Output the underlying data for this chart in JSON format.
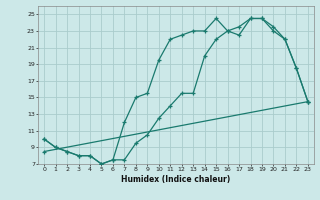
{
  "xlabel": "Humidex (Indice chaleur)",
  "bg_color": "#cce8e8",
  "grid_color": "#aacccc",
  "line_color": "#1a7a6e",
  "xlim": [
    -0.5,
    23.5
  ],
  "ylim": [
    7,
    26
  ],
  "xticks": [
    0,
    1,
    2,
    3,
    4,
    5,
    6,
    7,
    8,
    9,
    10,
    11,
    12,
    13,
    14,
    15,
    16,
    17,
    18,
    19,
    20,
    21,
    22,
    23
  ],
  "yticks": [
    7,
    9,
    11,
    13,
    15,
    17,
    19,
    21,
    23,
    25
  ],
  "line1_x": [
    0,
    1,
    2,
    3,
    4,
    5,
    6,
    7,
    8,
    9,
    10,
    11,
    12,
    13,
    14,
    15,
    16,
    17,
    18,
    19,
    20,
    21,
    22,
    23
  ],
  "line1_y": [
    10,
    9,
    8.5,
    8,
    8,
    7,
    7.5,
    12,
    15,
    15.5,
    19.5,
    22,
    22.5,
    23,
    23,
    24.5,
    23,
    23.5,
    24.5,
    24.5,
    23,
    22,
    18.5,
    14.5
  ],
  "line2_x": [
    0,
    1,
    2,
    3,
    4,
    5,
    6,
    7,
    8,
    9,
    10,
    11,
    12,
    13,
    14,
    15,
    16,
    17,
    18,
    19,
    20,
    21,
    22,
    23
  ],
  "line2_y": [
    10,
    9,
    8.5,
    8,
    8,
    7,
    7.5,
    7.5,
    9.5,
    10.5,
    12.5,
    14,
    15.5,
    15.5,
    20,
    22,
    23,
    22.5,
    24.5,
    24.5,
    23.5,
    22,
    18.5,
    14.5
  ],
  "line3_x": [
    0,
    23
  ],
  "line3_y": [
    8.5,
    14.5
  ]
}
